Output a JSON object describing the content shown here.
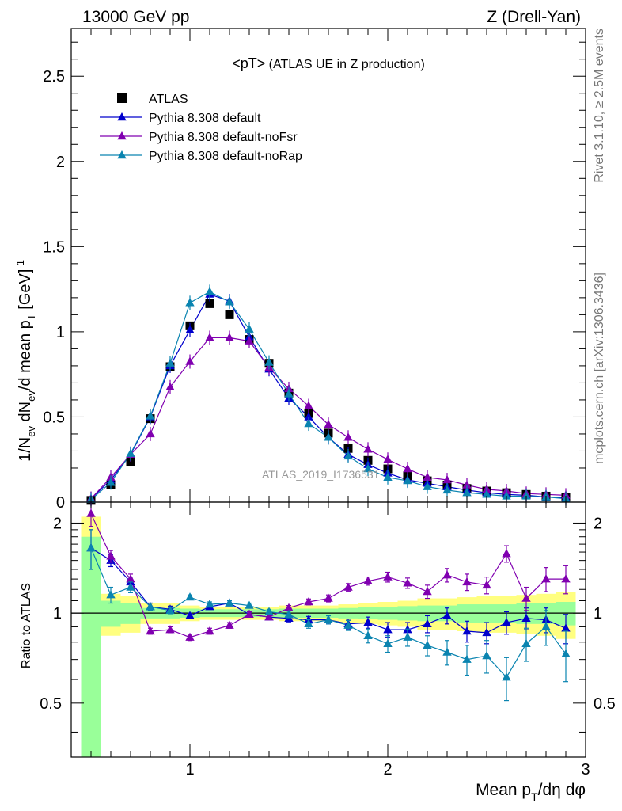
{
  "header": {
    "left": "13000 GeV pp",
    "right": "Z (Drell-Yan)"
  },
  "side": {
    "top": "Rivet 3.1.10, ≥ 2.5M events",
    "bottom": "mcplots.cern.ch [arXiv:1306.3436]"
  },
  "watermark": "ATLAS_2019_I1736531",
  "chart_data": [
    {
      "type": "scatter",
      "title": "<pT> (ATLAS UE in Z production)",
      "xlabel": "Mean p_T/dη dφ",
      "ylabel": "1/N_ev dN_ev/d mean p_T [GeV]^-1",
      "xlim": [
        0.4,
        3.0
      ],
      "ylim": [
        0,
        2.78
      ],
      "yticks": [
        0,
        0.5,
        1,
        1.5,
        2,
        2.5
      ],
      "ytick_labels": [
        "0",
        "0.5",
        "1",
        "1.5",
        "2",
        "2.5"
      ],
      "legend_position": "top-left",
      "x": [
        0.5,
        0.6,
        0.7,
        0.8,
        0.9,
        1.0,
        1.1,
        1.2,
        1.3,
        1.4,
        1.5,
        1.6,
        1.7,
        1.8,
        1.9,
        2.0,
        2.1,
        2.2,
        2.3,
        2.4,
        2.5,
        2.6,
        2.7,
        2.8,
        2.9
      ],
      "series": [
        {
          "name": "ATLAS",
          "color": "#000000",
          "marker": "square",
          "values": [
            0.01,
            0.1,
            0.235,
            0.49,
            0.795,
            1.035,
            1.165,
            1.1,
            0.955,
            0.815,
            0.64,
            0.52,
            0.405,
            0.315,
            0.245,
            0.195,
            0.155,
            0.125,
            0.1,
            0.08,
            0.065,
            0.055,
            0.045,
            0.035,
            0.03
          ]
        },
        {
          "name": "Pythia 8.308 default",
          "color": "#0000cc",
          "marker": "triangle",
          "values": [
            0.02,
            0.13,
            0.28,
            0.5,
            0.8,
            1.01,
            1.22,
            1.18,
            0.97,
            0.78,
            0.61,
            0.5,
            0.38,
            0.28,
            0.22,
            0.17,
            0.13,
            0.11,
            0.09,
            0.07,
            0.055,
            0.045,
            0.04,
            0.03,
            0.025
          ]
        },
        {
          "name": "Pythia 8.308 default-noFsr",
          "color": "#8000b0",
          "marker": "triangle",
          "values": [
            0.02,
            0.145,
            0.28,
            0.4,
            0.675,
            0.825,
            0.965,
            0.965,
            0.945,
            0.79,
            0.665,
            0.565,
            0.455,
            0.38,
            0.31,
            0.25,
            0.195,
            0.145,
            0.13,
            0.1,
            0.075,
            0.065,
            0.05,
            0.045,
            0.04
          ]
        },
        {
          "name": "Pythia 8.308 default-noRap",
          "color": "#0a84b0",
          "marker": "triangle",
          "values": [
            0.015,
            0.115,
            0.285,
            0.505,
            0.815,
            1.17,
            1.235,
            1.175,
            1.015,
            0.82,
            0.635,
            0.46,
            0.38,
            0.27,
            0.195,
            0.145,
            0.125,
            0.09,
            0.07,
            0.055,
            0.045,
            0.035,
            0.035,
            0.03,
            0.02
          ]
        }
      ]
    },
    {
      "type": "scatter",
      "ylabel": "Ratio to ATLAS",
      "xlabel": "Mean p_T/dη dφ",
      "xlim": [
        0.4,
        3.0
      ],
      "ylim": [
        0.33,
        2.35
      ],
      "log_y": true,
      "xticks": [
        1,
        2,
        3
      ],
      "xtick_labels": [
        "1",
        "2",
        "3"
      ],
      "yticks": [
        0.5,
        1,
        2
      ],
      "ytick_labels": [
        "0.5",
        "1",
        "2"
      ],
      "x": [
        0.5,
        0.6,
        0.7,
        0.8,
        0.9,
        1.0,
        1.1,
        1.2,
        1.3,
        1.4,
        1.5,
        1.6,
        1.7,
        1.8,
        1.9,
        2.0,
        2.1,
        2.2,
        2.3,
        2.4,
        2.5,
        2.6,
        2.7,
        2.8,
        2.9
      ],
      "bands": {
        "yellow_halfwidth": [
          1.1,
          0.16,
          0.14,
          0.08,
          0.08,
          0.06,
          0.05,
          0.05,
          0.05,
          0.05,
          0.06,
          0.06,
          0.06,
          0.07,
          0.08,
          0.09,
          0.1,
          0.12,
          0.12,
          0.13,
          0.14,
          0.14,
          0.15,
          0.16,
          0.18
        ],
        "green_halfwidth": [
          0.8,
          0.1,
          0.08,
          0.04,
          0.04,
          0.035,
          0.03,
          0.03,
          0.03,
          0.03,
          0.035,
          0.035,
          0.035,
          0.04,
          0.045,
          0.05,
          0.055,
          0.06,
          0.06,
          0.07,
          0.07,
          0.07,
          0.08,
          0.08,
          0.09
        ]
      },
      "series": [
        {
          "name": "Pythia 8.308 default",
          "color": "#0000cc",
          "values": [
            1.65,
            1.5,
            1.27,
            1.05,
            1.03,
            0.98,
            1.05,
            1.08,
            0.99,
            0.97,
            0.96,
            0.95,
            0.95,
            0.92,
            0.93,
            0.88,
            0.88,
            0.92,
            0.98,
            0.87,
            0.86,
            0.93,
            0.96,
            0.95,
            0.89
          ],
          "errors": [
            0.25,
            0.07,
            0.05,
            0.03,
            0.025,
            0.02,
            0.02,
            0.02,
            0.02,
            0.02,
            0.025,
            0.025,
            0.03,
            0.035,
            0.04,
            0.05,
            0.05,
            0.06,
            0.06,
            0.07,
            0.07,
            0.08,
            0.08,
            0.09,
            0.1
          ]
        },
        {
          "name": "Pythia 8.308 default-noFsr",
          "color": "#8000b0",
          "values": [
            2.15,
            1.55,
            1.3,
            0.87,
            0.88,
            0.83,
            0.87,
            0.91,
            0.99,
            0.97,
            1.04,
            1.09,
            1.12,
            1.22,
            1.28,
            1.32,
            1.26,
            1.18,
            1.34,
            1.27,
            1.24,
            1.58,
            1.12,
            1.3,
            1.3
          ],
          "errors": [
            0.2,
            0.07,
            0.05,
            0.02,
            0.02,
            0.02,
            0.02,
            0.02,
            0.02,
            0.02,
            0.02,
            0.025,
            0.03,
            0.035,
            0.04,
            0.05,
            0.05,
            0.06,
            0.07,
            0.08,
            0.08,
            0.1,
            0.1,
            0.12,
            0.14
          ]
        },
        {
          "name": "Pythia 8.308 default-noRap",
          "color": "#0a84b0",
          "values": [
            1.65,
            1.15,
            1.22,
            1.05,
            1.02,
            1.13,
            1.07,
            1.08,
            1.06,
            1.01,
            0.99,
            0.92,
            0.95,
            0.91,
            0.84,
            0.79,
            0.83,
            0.78,
            0.74,
            0.7,
            0.72,
            0.61,
            0.79,
            0.9,
            0.73
          ],
          "errors": [
            0.25,
            0.07,
            0.05,
            0.03,
            0.025,
            0.02,
            0.02,
            0.02,
            0.02,
            0.02,
            0.025,
            0.03,
            0.03,
            0.035,
            0.045,
            0.05,
            0.055,
            0.06,
            0.07,
            0.08,
            0.09,
            0.1,
            0.1,
            0.12,
            0.14
          ]
        }
      ]
    }
  ]
}
